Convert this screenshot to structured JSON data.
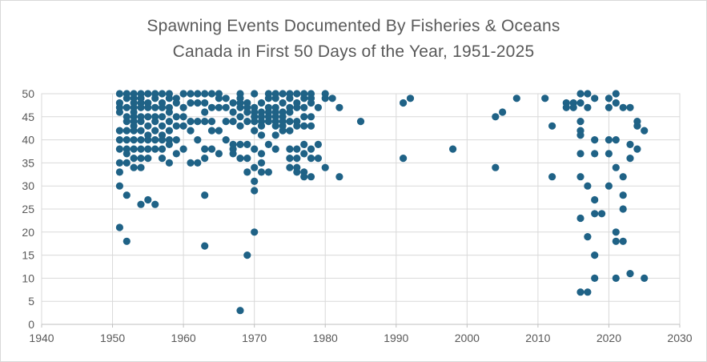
{
  "figure": {
    "background": "#FFFFFF",
    "border_color": "#D9D9D9"
  },
  "chart_data": {
    "type": "scatter",
    "title_line1": "Spawning Events Documented By Fisheries & Oceans",
    "title_line2": "Canada in First 50 Days of the Year, 1951-2025",
    "title_color": "#595959",
    "marker_color": "#1F6286",
    "grid_color": "#D9D9D9",
    "axis_color": "#BFBFBF",
    "tick_label_color": "#595959",
    "grid": true,
    "legend": false,
    "xlim": [
      1940,
      2030
    ],
    "ylim": [
      0,
      50
    ],
    "x_ticks": [
      1940,
      1950,
      1960,
      1970,
      1980,
      1990,
      2000,
      2010,
      2020,
      2030
    ],
    "y_ticks": [
      0,
      5,
      10,
      15,
      20,
      25,
      30,
      35,
      40,
      45,
      50
    ],
    "xlabel": "",
    "ylabel": "",
    "points": [
      [
        1951,
        50
      ],
      [
        1951,
        48
      ],
      [
        1951,
        47
      ],
      [
        1951,
        46
      ],
      [
        1951,
        42
      ],
      [
        1951,
        40
      ],
      [
        1951,
        38
      ],
      [
        1951,
        35
      ],
      [
        1951,
        33
      ],
      [
        1951,
        30
      ],
      [
        1951,
        21
      ],
      [
        1952,
        50
      ],
      [
        1952,
        49
      ],
      [
        1952,
        47
      ],
      [
        1952,
        45
      ],
      [
        1952,
        44
      ],
      [
        1952,
        42
      ],
      [
        1952,
        40
      ],
      [
        1952,
        38
      ],
      [
        1952,
        37
      ],
      [
        1952,
        35
      ],
      [
        1952,
        28
      ],
      [
        1952,
        18
      ],
      [
        1953,
        50
      ],
      [
        1953,
        49
      ],
      [
        1953,
        48
      ],
      [
        1953,
        47
      ],
      [
        1953,
        46
      ],
      [
        1953,
        45
      ],
      [
        1953,
        44
      ],
      [
        1953,
        43
      ],
      [
        1953,
        42
      ],
      [
        1953,
        40
      ],
      [
        1953,
        38
      ],
      [
        1953,
        36
      ],
      [
        1953,
        34
      ],
      [
        1954,
        50
      ],
      [
        1954,
        49
      ],
      [
        1954,
        48
      ],
      [
        1954,
        47
      ],
      [
        1954,
        45
      ],
      [
        1954,
        44
      ],
      [
        1954,
        42
      ],
      [
        1954,
        40
      ],
      [
        1954,
        38
      ],
      [
        1954,
        36
      ],
      [
        1954,
        34
      ],
      [
        1954,
        26
      ],
      [
        1955,
        50
      ],
      [
        1955,
        48
      ],
      [
        1955,
        47
      ],
      [
        1955,
        45
      ],
      [
        1955,
        43
      ],
      [
        1955,
        41
      ],
      [
        1955,
        40
      ],
      [
        1955,
        38
      ],
      [
        1955,
        36
      ],
      [
        1955,
        27
      ],
      [
        1956,
        50
      ],
      [
        1956,
        49
      ],
      [
        1956,
        47
      ],
      [
        1956,
        45
      ],
      [
        1956,
        44
      ],
      [
        1956,
        42
      ],
      [
        1956,
        40
      ],
      [
        1956,
        38
      ],
      [
        1956,
        26
      ],
      [
        1957,
        50
      ],
      [
        1957,
        48
      ],
      [
        1957,
        47
      ],
      [
        1957,
        45
      ],
      [
        1957,
        43
      ],
      [
        1957,
        41
      ],
      [
        1957,
        40
      ],
      [
        1957,
        38
      ],
      [
        1957,
        36
      ],
      [
        1958,
        50
      ],
      [
        1958,
        49
      ],
      [
        1958,
        47
      ],
      [
        1958,
        46
      ],
      [
        1958,
        44
      ],
      [
        1958,
        42
      ],
      [
        1958,
        40
      ],
      [
        1958,
        39
      ],
      [
        1958,
        35
      ],
      [
        1959,
        49
      ],
      [
        1959,
        48
      ],
      [
        1959,
        45
      ],
      [
        1959,
        43
      ],
      [
        1959,
        40
      ],
      [
        1959,
        37
      ],
      [
        1960,
        50
      ],
      [
        1960,
        47
      ],
      [
        1960,
        45
      ],
      [
        1960,
        43
      ],
      [
        1960,
        38
      ],
      [
        1961,
        50
      ],
      [
        1961,
        48
      ],
      [
        1961,
        44
      ],
      [
        1961,
        42
      ],
      [
        1961,
        35
      ],
      [
        1962,
        50
      ],
      [
        1962,
        48
      ],
      [
        1962,
        44
      ],
      [
        1962,
        40
      ],
      [
        1962,
        35
      ],
      [
        1963,
        50
      ],
      [
        1963,
        48
      ],
      [
        1963,
        46
      ],
      [
        1963,
        44
      ],
      [
        1963,
        38
      ],
      [
        1963,
        36
      ],
      [
        1963,
        28
      ],
      [
        1963,
        17
      ],
      [
        1964,
        50
      ],
      [
        1964,
        47
      ],
      [
        1964,
        44
      ],
      [
        1964,
        42
      ],
      [
        1964,
        38
      ],
      [
        1965,
        50
      ],
      [
        1965,
        49
      ],
      [
        1965,
        47
      ],
      [
        1965,
        42
      ],
      [
        1965,
        37
      ],
      [
        1966,
        49
      ],
      [
        1966,
        47
      ],
      [
        1966,
        44
      ],
      [
        1966,
        40
      ],
      [
        1967,
        48
      ],
      [
        1967,
        46
      ],
      [
        1967,
        44
      ],
      [
        1967,
        39
      ],
      [
        1967,
        38
      ],
      [
        1967,
        37
      ],
      [
        1968,
        50
      ],
      [
        1968,
        49
      ],
      [
        1968,
        48
      ],
      [
        1968,
        47
      ],
      [
        1968,
        45
      ],
      [
        1968,
        43
      ],
      [
        1968,
        39
      ],
      [
        1968,
        36
      ],
      [
        1968,
        3
      ],
      [
        1969,
        48
      ],
      [
        1969,
        47
      ],
      [
        1969,
        46
      ],
      [
        1969,
        44
      ],
      [
        1969,
        39
      ],
      [
        1969,
        36
      ],
      [
        1969,
        33
      ],
      [
        1969,
        15
      ],
      [
        1970,
        50
      ],
      [
        1970,
        47
      ],
      [
        1970,
        46
      ],
      [
        1970,
        45
      ],
      [
        1970,
        44
      ],
      [
        1970,
        42
      ],
      [
        1970,
        38
      ],
      [
        1970,
        34
      ],
      [
        1970,
        31
      ],
      [
        1970,
        29
      ],
      [
        1970,
        20
      ],
      [
        1971,
        48
      ],
      [
        1971,
        46
      ],
      [
        1971,
        45
      ],
      [
        1971,
        44
      ],
      [
        1971,
        43
      ],
      [
        1971,
        41
      ],
      [
        1971,
        37
      ],
      [
        1971,
        35
      ],
      [
        1971,
        33
      ],
      [
        1972,
        50
      ],
      [
        1972,
        49
      ],
      [
        1972,
        47
      ],
      [
        1972,
        46
      ],
      [
        1972,
        45
      ],
      [
        1972,
        44
      ],
      [
        1972,
        39
      ],
      [
        1972,
        33
      ],
      [
        1973,
        50
      ],
      [
        1973,
        49
      ],
      [
        1973,
        47
      ],
      [
        1973,
        46
      ],
      [
        1973,
        45
      ],
      [
        1973,
        44
      ],
      [
        1973,
        43
      ],
      [
        1973,
        41
      ],
      [
        1973,
        38
      ],
      [
        1974,
        50
      ],
      [
        1974,
        48
      ],
      [
        1974,
        46
      ],
      [
        1974,
        45
      ],
      [
        1974,
        44
      ],
      [
        1974,
        43
      ],
      [
        1974,
        42
      ],
      [
        1975,
        50
      ],
      [
        1975,
        49
      ],
      [
        1975,
        47
      ],
      [
        1975,
        46
      ],
      [
        1975,
        44
      ],
      [
        1975,
        42
      ],
      [
        1975,
        38
      ],
      [
        1975,
        36
      ],
      [
        1975,
        34
      ],
      [
        1976,
        50
      ],
      [
        1976,
        48
      ],
      [
        1976,
        47
      ],
      [
        1976,
        44
      ],
      [
        1976,
        43
      ],
      [
        1976,
        38
      ],
      [
        1976,
        36
      ],
      [
        1976,
        34
      ],
      [
        1976,
        33
      ],
      [
        1977,
        50
      ],
      [
        1977,
        49
      ],
      [
        1977,
        47
      ],
      [
        1977,
        45
      ],
      [
        1977,
        43
      ],
      [
        1977,
        39
      ],
      [
        1977,
        37
      ],
      [
        1977,
        33
      ],
      [
        1977,
        32
      ],
      [
        1978,
        50
      ],
      [
        1978,
        49
      ],
      [
        1978,
        48
      ],
      [
        1978,
        45
      ],
      [
        1978,
        43
      ],
      [
        1978,
        38
      ],
      [
        1978,
        36
      ],
      [
        1978,
        32
      ],
      [
        1979,
        47
      ],
      [
        1979,
        39
      ],
      [
        1979,
        36
      ],
      [
        1980,
        50
      ],
      [
        1980,
        49
      ],
      [
        1980,
        34
      ],
      [
        1981,
        49
      ],
      [
        1982,
        47
      ],
      [
        1982,
        32
      ],
      [
        1985,
        44
      ],
      [
        1991,
        48
      ],
      [
        1991,
        36
      ],
      [
        1992,
        49
      ],
      [
        1998,
        38
      ],
      [
        2004,
        45
      ],
      [
        2004,
        34
      ],
      [
        2005,
        46
      ],
      [
        2007,
        49
      ],
      [
        2011,
        49
      ],
      [
        2012,
        43
      ],
      [
        2012,
        32
      ],
      [
        2014,
        48
      ],
      [
        2014,
        47
      ],
      [
        2015,
        48
      ],
      [
        2015,
        47
      ],
      [
        2016,
        50
      ],
      [
        2016,
        48
      ],
      [
        2016,
        44
      ],
      [
        2016,
        42
      ],
      [
        2016,
        41
      ],
      [
        2016,
        37
      ],
      [
        2016,
        32
      ],
      [
        2016,
        23
      ],
      [
        2016,
        7
      ],
      [
        2017,
        50
      ],
      [
        2017,
        47
      ],
      [
        2017,
        30
      ],
      [
        2017,
        19
      ],
      [
        2017,
        7
      ],
      [
        2018,
        49
      ],
      [
        2018,
        40
      ],
      [
        2018,
        37
      ],
      [
        2018,
        27
      ],
      [
        2018,
        24
      ],
      [
        2018,
        15
      ],
      [
        2018,
        10
      ],
      [
        2019,
        24
      ],
      [
        2020,
        49
      ],
      [
        2020,
        47
      ],
      [
        2020,
        40
      ],
      [
        2020,
        37
      ],
      [
        2020,
        30
      ],
      [
        2021,
        50
      ],
      [
        2021,
        48
      ],
      [
        2021,
        40
      ],
      [
        2021,
        34
      ],
      [
        2021,
        20
      ],
      [
        2021,
        18
      ],
      [
        2021,
        10
      ],
      [
        2022,
        47
      ],
      [
        2022,
        32
      ],
      [
        2022,
        28
      ],
      [
        2022,
        25
      ],
      [
        2022,
        18
      ],
      [
        2023,
        47
      ],
      [
        2023,
        39
      ],
      [
        2023,
        36
      ],
      [
        2023,
        11
      ],
      [
        2024,
        44
      ],
      [
        2024,
        43
      ],
      [
        2024,
        38
      ],
      [
        2025,
        42
      ],
      [
        2025,
        10
      ]
    ]
  }
}
